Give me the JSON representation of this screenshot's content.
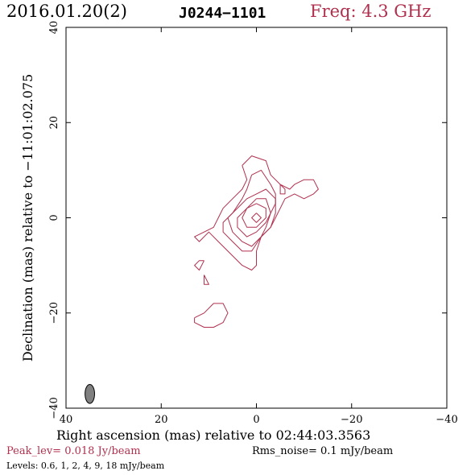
{
  "header": {
    "date": "2016.01.20(2)",
    "source": "J0244−1101",
    "frequency": "Freq: 4.3 GHz",
    "frequency_color": "#b0304e"
  },
  "footer": {
    "peak": "Peak_lev=  0.018 Jy/beam",
    "rms": "Rms_noise=  0.1 mJy/beam",
    "levels": "Levels: 0.6,   1,   2,   4,   9,   18 mJy/beam"
  },
  "chart_data": {
    "type": "contour",
    "xlabel": "Right ascension (mas) relative to 02:44:03.3563",
    "ylabel": "Declination (mas) relative to −11:01:02.075",
    "xlim": [
      40,
      -40
    ],
    "ylim": [
      -40,
      40
    ],
    "x_ticks": [
      "40",
      "20",
      "0",
      "−20",
      "−40"
    ],
    "y_ticks": [
      "−40",
      "−20",
      "0",
      "20",
      "40"
    ],
    "contour_color": "#b0304e",
    "levels_mJy_per_beam": [
      0.6,
      1,
      2,
      4,
      9,
      18
    ],
    "beam": {
      "x": 35,
      "y": -37,
      "major": 4,
      "minor": 2,
      "pa_deg": 0,
      "fill": "#808080"
    },
    "contours": [
      {
        "name": "level-0.6",
        "points": [
          [
            3,
            11
          ],
          [
            1,
            13
          ],
          [
            -2,
            12
          ],
          [
            -3,
            9
          ],
          [
            -5,
            7
          ],
          [
            -7,
            6
          ],
          [
            -8,
            7
          ],
          [
            -10,
            8
          ],
          [
            -12,
            8
          ],
          [
            -13,
            6
          ],
          [
            -12,
            5
          ],
          [
            -10,
            4
          ],
          [
            -8,
            5
          ],
          [
            -6,
            4
          ],
          [
            -5,
            2
          ],
          [
            -4,
            0
          ],
          [
            -3,
            -2
          ],
          [
            -1,
            -4
          ],
          [
            0,
            -7
          ],
          [
            0,
            -10
          ],
          [
            1,
            -11
          ],
          [
            3,
            -10
          ],
          [
            6,
            -7
          ],
          [
            8,
            -5
          ],
          [
            10,
            -3
          ],
          [
            12,
            -5
          ],
          [
            13,
            -4
          ],
          [
            11,
            -3
          ],
          [
            9,
            -2
          ],
          [
            8,
            0
          ],
          [
            7,
            2
          ],
          [
            5,
            4
          ],
          [
            3,
            6
          ],
          [
            2,
            8
          ],
          [
            3,
            11
          ]
        ]
      },
      {
        "name": "level-0.6-b",
        "points": [
          [
            11,
            -9
          ],
          [
            12,
            -11
          ],
          [
            13,
            -10
          ],
          [
            12,
            -9
          ],
          [
            11,
            -9
          ]
        ]
      },
      {
        "name": "level-0.6-c",
        "points": [
          [
            11,
            -12
          ],
          [
            10,
            -14
          ],
          [
            11,
            -14
          ],
          [
            11,
            -12
          ]
        ]
      },
      {
        "name": "level-0.6-d",
        "points": [
          [
            13,
            -21
          ],
          [
            11,
            -20
          ],
          [
            9,
            -18
          ],
          [
            7,
            -18
          ],
          [
            6,
            -20
          ],
          [
            7,
            -22
          ],
          [
            9,
            -23
          ],
          [
            11,
            -23
          ],
          [
            13,
            -22
          ],
          [
            13,
            -21
          ]
        ]
      },
      {
        "name": "level-1",
        "points": [
          [
            1,
            9
          ],
          [
            -1,
            10
          ],
          [
            -3,
            7
          ],
          [
            -4,
            5
          ],
          [
            -4,
            3
          ],
          [
            -3,
            1
          ],
          [
            -2,
            -2
          ],
          [
            -1,
            -4
          ],
          [
            1,
            -7
          ],
          [
            3,
            -7
          ],
          [
            5,
            -5
          ],
          [
            7,
            -3
          ],
          [
            7,
            -1
          ],
          [
            5,
            1
          ],
          [
            3,
            4
          ],
          [
            2,
            6
          ],
          [
            1,
            9
          ]
        ]
      },
      {
        "name": "level-1-b",
        "points": [
          [
            -5,
            7
          ],
          [
            -6,
            6
          ],
          [
            -6,
            5
          ],
          [
            -5,
            5
          ],
          [
            -5,
            7
          ]
        ]
      },
      {
        "name": "level-2",
        "points": [
          [
            0,
            5
          ],
          [
            -2,
            6
          ],
          [
            -4,
            4
          ],
          [
            -4,
            1
          ],
          [
            -3,
            -2
          ],
          [
            -1,
            -4
          ],
          [
            1,
            -6
          ],
          [
            3,
            -5
          ],
          [
            5,
            -3
          ],
          [
            6,
            0
          ],
          [
            4,
            2
          ],
          [
            2,
            4
          ],
          [
            0,
            5
          ]
        ]
      },
      {
        "name": "level-4",
        "points": [
          [
            0,
            4
          ],
          [
            -2,
            4
          ],
          [
            -3,
            1
          ],
          [
            -2,
            -1
          ],
          [
            0,
            -3
          ],
          [
            2,
            -4
          ],
          [
            4,
            -2
          ],
          [
            4,
            0
          ],
          [
            2,
            2
          ],
          [
            0,
            4
          ]
        ]
      },
      {
        "name": "level-9",
        "points": [
          [
            0,
            3
          ],
          [
            -2,
            2
          ],
          [
            -2,
            0
          ],
          [
            0,
            -2
          ],
          [
            2,
            -2
          ],
          [
            3,
            0
          ],
          [
            2,
            2
          ],
          [
            0,
            3
          ]
        ]
      },
      {
        "name": "level-18",
        "points": [
          [
            0,
            1
          ],
          [
            -1,
            0
          ],
          [
            0,
            -1
          ],
          [
            1,
            0
          ],
          [
            0,
            1
          ]
        ]
      }
    ]
  }
}
